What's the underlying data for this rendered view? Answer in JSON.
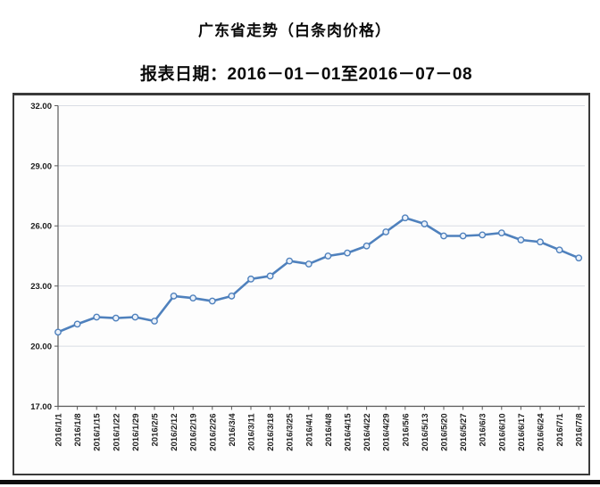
{
  "header": {
    "title": "广东省走势（白条肉价格）",
    "report_date": "报表日期：2016－01－01至2016－07－08"
  },
  "chart_data": {
    "type": "line",
    "title": "广东省走势（白条肉价格）",
    "subtitle": "报表日期：2016－01－01至2016－07－08",
    "x": [
      "2016/1/1",
      "2016/1/8",
      "2016/1/15",
      "2016/1/22",
      "2016/1/29",
      "2016/2/5",
      "2016/2/12",
      "2016/2/19",
      "2016/2/26",
      "2016/3/4",
      "2016/3/11",
      "2016/3/18",
      "2016/3/25",
      "2016/4/1",
      "2016/4/8",
      "2016/4/15",
      "2016/4/22",
      "2016/4/29",
      "2016/5/6",
      "2016/5/13",
      "2016/5/20",
      "2016/5/27",
      "2016/6/3",
      "2016/6/10",
      "2016/6/17",
      "2016/6/24",
      "2016/7/1",
      "2016/7/8"
    ],
    "series": [
      {
        "name": "白条肉价格",
        "values": [
          20.7,
          21.1,
          21.45,
          21.4,
          21.45,
          21.25,
          22.5,
          22.4,
          22.25,
          22.5,
          23.35,
          23.5,
          24.25,
          24.1,
          24.5,
          24.65,
          25.0,
          25.7,
          26.4,
          26.1,
          25.5,
          25.5,
          25.55,
          25.65,
          25.3,
          25.2,
          24.8,
          24.4
        ]
      }
    ],
    "ylim": [
      17,
      32
    ],
    "yticks": [
      32,
      29,
      26,
      23,
      20,
      17
    ],
    "ytick_labels": [
      "32.00",
      "29.00",
      "26.00",
      "23.00",
      "20.00",
      "17.00"
    ],
    "xlabel": "",
    "ylabel": "",
    "grid": "horizontal",
    "legend": "none",
    "marker": "circle",
    "colors": {
      "line": "#4f81bd",
      "marker_fill": "#ecf2fa",
      "grid": "#d9dde4",
      "axis": "#595959",
      "text": "#1c1c1c"
    }
  }
}
